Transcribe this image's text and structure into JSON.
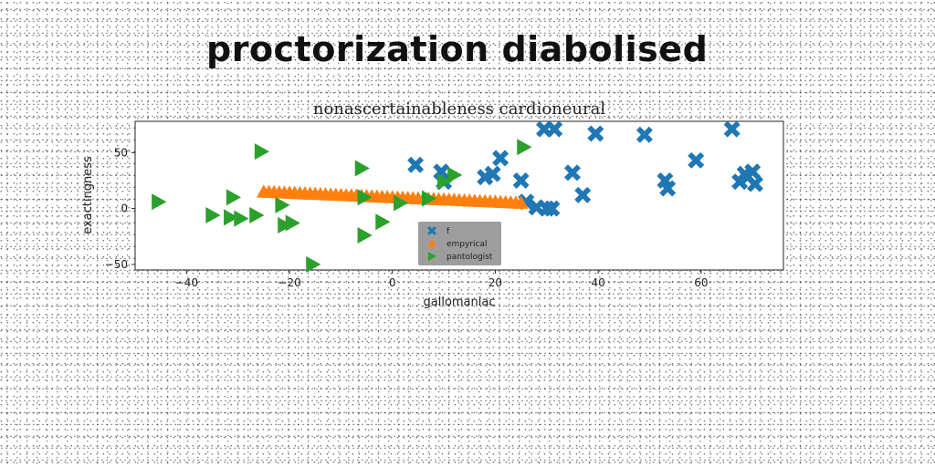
{
  "page_title": "proctorization diabolised",
  "chart_data": {
    "type": "scatter",
    "title": "nonascertainableness cardioneural",
    "xlabel": "gallomaniac",
    "ylabel": "exactingness",
    "xlim": [
      -50,
      76
    ],
    "ylim": [
      -55,
      78
    ],
    "xticks": [
      -40,
      -20,
      0,
      20,
      40,
      60
    ],
    "yticks": [
      -50,
      0,
      50
    ],
    "grid": false,
    "legend_position": "lower-center",
    "series": [
      {
        "name": "f",
        "marker": "X",
        "color": "#1f77b4",
        "x": [
          4.5,
          9.5,
          10,
          18,
          19.5,
          21,
          25,
          26,
          28,
          29.5,
          30,
          31,
          31.5,
          35,
          37,
          39.5,
          49,
          53,
          53.5,
          59,
          66,
          67.5,
          68.5,
          69,
          70,
          70.5
        ],
        "y": [
          39,
          33,
          24,
          28,
          31,
          45,
          25,
          6,
          1,
          71,
          0,
          0,
          71,
          32,
          12,
          67,
          66,
          25,
          18,
          43,
          71,
          24,
          31,
          28,
          33,
          22
        ]
      },
      {
        "name": "empyrical",
        "marker": "^",
        "color": "#ff7f0e",
        "x": [
          -25,
          -24,
          -23,
          -22,
          -21,
          -20,
          -19,
          -18,
          -17,
          -16,
          -15,
          -14,
          -13,
          -12,
          -11,
          -10,
          -9,
          -8,
          -7,
          -6,
          -5,
          -4,
          -3,
          -2,
          -1,
          0,
          1,
          2,
          3,
          4,
          5,
          6,
          7,
          8,
          9,
          10,
          11,
          12,
          13,
          14,
          15,
          16,
          17,
          18,
          19,
          20,
          21,
          22,
          23,
          24,
          25
        ],
        "y": [
          15,
          14.8,
          14.6,
          14.4,
          14.2,
          14,
          13.8,
          13.6,
          13.4,
          13.2,
          13,
          12.8,
          12.6,
          12.4,
          12.2,
          12,
          11.8,
          11.6,
          11.4,
          11.2,
          11,
          10.8,
          10.6,
          10.4,
          10.2,
          10,
          9.8,
          9.6,
          9.4,
          9.2,
          9,
          8.8,
          8.6,
          8.4,
          8.2,
          8,
          7.8,
          7.6,
          7.4,
          7.2,
          7,
          6.8,
          6.6,
          6.4,
          6.2,
          6,
          5.8,
          5.6,
          5.4,
          5.2,
          5
        ]
      },
      {
        "name": "pantologist",
        "marker": ">",
        "color": "#2ca02c",
        "x": [
          -45.5,
          -35,
          -31.5,
          -31,
          -29.5,
          -26.5,
          -25.5,
          -21.5,
          -21,
          -19.5,
          -15.5,
          -6,
          -5.5,
          -5.5,
          -2,
          1.5,
          7,
          10,
          12,
          25.5
        ],
        "y": [
          6,
          -6,
          -8,
          10,
          -9,
          -6,
          51,
          3,
          -15,
          -13,
          -50,
          36,
          10,
          -24,
          -12,
          5,
          9,
          24,
          30,
          55
        ]
      }
    ]
  }
}
